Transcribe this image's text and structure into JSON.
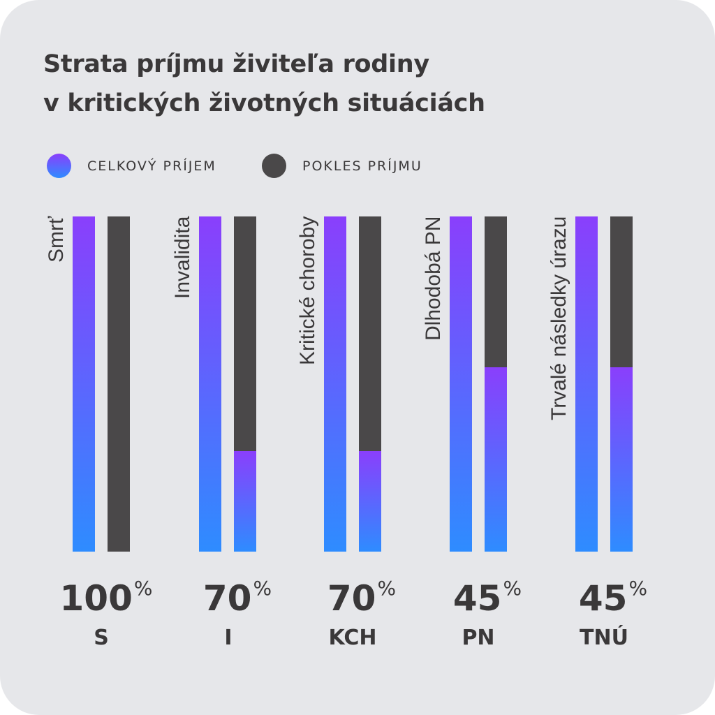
{
  "colors": {
    "grad_top": "#8a3ffc",
    "grad_bottom": "#2e8cff",
    "dark": "#4a4849"
  },
  "chart_data": {
    "type": "bar",
    "title": "Strata príjmu živiteľa rodiny v kritických životných situáciách",
    "title_lines": [
      "Strata príjmu živiteľa rodiny",
      "v kritických životných situáciách"
    ],
    "legend": [
      "CELKOVÝ PRÍJEM",
      "POKLES PRÍJMU"
    ],
    "categories": [
      "Smrť",
      "Invalidita",
      "Kritické choroby",
      "Dlhodobá PN",
      "Trvalé následky úrazu"
    ],
    "codes": [
      "S",
      "I",
      "KCH",
      "PN",
      "TNÚ"
    ],
    "pokles_percent": [
      100,
      70,
      70,
      45,
      45
    ],
    "percent_labels": [
      "100",
      "70",
      "70",
      "45",
      "45"
    ],
    "percent_sign": "%",
    "series": [
      {
        "name": "CELKOVÝ PRÍJEM",
        "values": [
          100,
          100,
          100,
          100,
          100
        ]
      },
      {
        "name": "POKLES PRÍJMU",
        "values": [
          100,
          70,
          70,
          45,
          45
        ]
      }
    ],
    "ylim": [
      0,
      100
    ]
  }
}
